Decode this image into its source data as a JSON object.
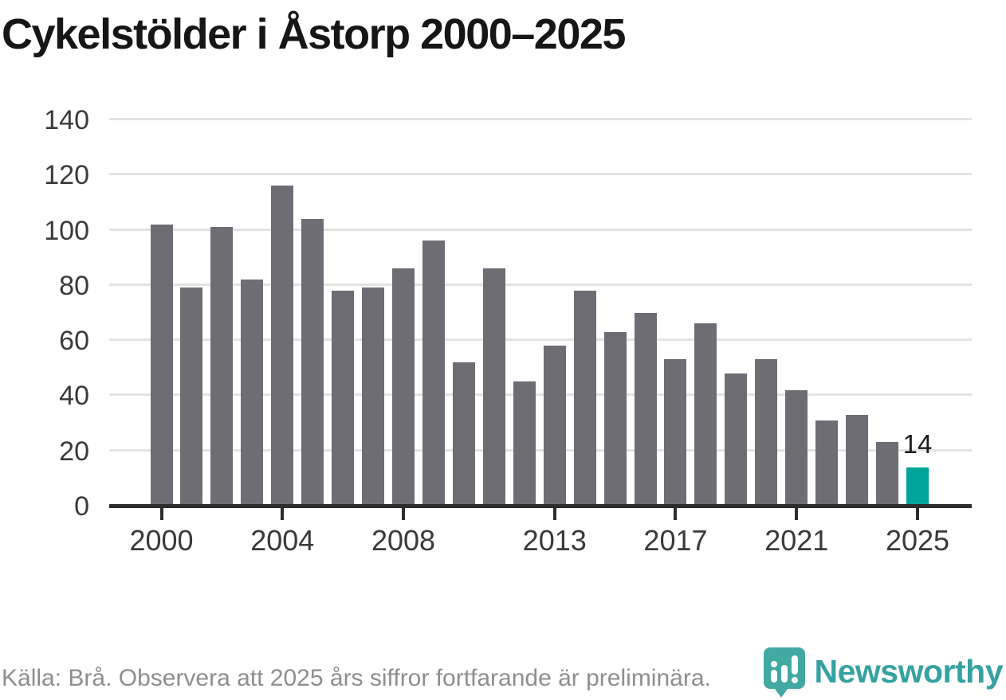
{
  "title": "Cykelstölder i Åstorp 2000–2025",
  "footer": {
    "source_note": "Källa: Brå. Observera att 2025 års siffror fortfarande är preliminära."
  },
  "brand": {
    "name": "Newsworthy",
    "wordmark_color": "#35A2A1",
    "pin_color": "#38A49D"
  },
  "colors": {
    "bar": "#6F6D74",
    "highlight_bar": "#00A59A",
    "gridline": "#E3E3E3",
    "axis": "#2D2D2D",
    "tick_label": "#3A3A3A",
    "title_text": "#161616",
    "footer_text": "#8E8E8E",
    "annotation_text": "#1C1C1C"
  },
  "chart_data": {
    "type": "bar",
    "title": "Cykelstölder i Åstorp 2000–2025",
    "categories": [
      2000,
      2001,
      2002,
      2003,
      2004,
      2005,
      2006,
      2007,
      2008,
      2009,
      2010,
      2011,
      2012,
      2013,
      2014,
      2015,
      2016,
      2017,
      2018,
      2019,
      2020,
      2021,
      2022,
      2023,
      2024,
      2025
    ],
    "values": [
      102,
      79,
      101,
      82,
      116,
      104,
      78,
      79,
      86,
      96,
      52,
      86,
      45,
      58,
      78,
      63,
      70,
      53,
      66,
      48,
      53,
      42,
      31,
      33,
      23,
      14
    ],
    "highlight_index": 25,
    "annotations": [
      {
        "index": 25,
        "label": "14"
      }
    ],
    "xlabel": "",
    "ylabel": "",
    "ylim": [
      0,
      140
    ],
    "yticks": [
      0,
      20,
      40,
      60,
      80,
      100,
      120,
      140
    ],
    "xtick_years": [
      2000,
      2004,
      2008,
      2013,
      2017,
      2021,
      2025
    ],
    "grid": "horizontal",
    "legend": "none"
  }
}
